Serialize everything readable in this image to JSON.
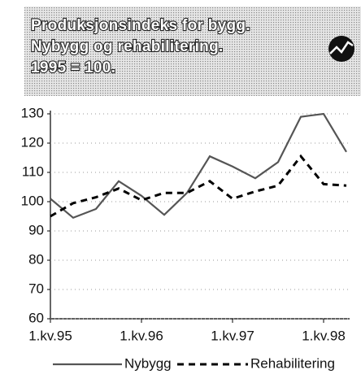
{
  "chart_data": {
    "type": "line",
    "title": [
      "Produksjonsindeks for bygg.",
      "Nybygg og rehabilitering.",
      "1995 = 100."
    ],
    "categories": [
      "1.kv.95",
      null,
      null,
      null,
      "1.kv.96",
      null,
      null,
      null,
      "1.kv.97",
      null,
      null,
      null,
      "1.kv.98",
      null
    ],
    "series": [
      {
        "name": "Nybygg",
        "color": "#555555",
        "dash": false,
        "values": [
          101,
          94.5,
          97.5,
          107,
          102,
          95.5,
          103,
          115.5,
          112,
          108,
          113.5,
          129,
          130,
          117
        ]
      },
      {
        "name": "Rehabilitering",
        "color": "#000000",
        "dash": true,
        "values": [
          95,
          99.5,
          101.5,
          104.5,
          100.5,
          103,
          103,
          107,
          101,
          103.5,
          105.5,
          115.5,
          106,
          105.5
        ]
      }
    ],
    "ylim": [
      60,
      130
    ],
    "yticks": [
      60,
      70,
      80,
      90,
      100,
      110,
      120,
      130
    ],
    "grid": true
  }
}
